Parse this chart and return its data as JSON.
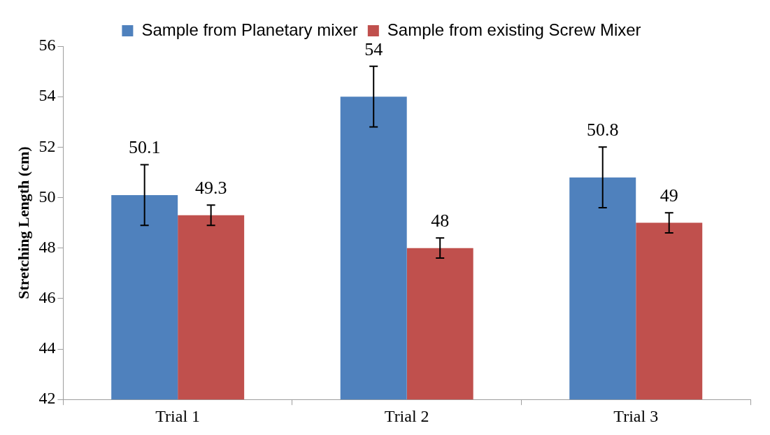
{
  "chart_data": {
    "type": "bar",
    "ylabel": "Stretching Length (cm)",
    "categories": [
      "Trial 1",
      "Trial 2",
      "Trial 3"
    ],
    "series": [
      {
        "name": "Sample from Planetary mixer",
        "color": "#4f81bd",
        "values": [
          50.1,
          54,
          50.8
        ],
        "errors": [
          1.2,
          1.2,
          1.2
        ]
      },
      {
        "name": "Sample from existing Screw Mixer",
        "color": "#c0504d",
        "values": [
          49.3,
          48,
          49
        ],
        "errors": [
          0.4,
          0.4,
          0.4
        ]
      }
    ],
    "ylim": [
      42,
      56
    ],
    "yticks": [
      42,
      44,
      46,
      48,
      50,
      52,
      54,
      56
    ],
    "grid": false,
    "legend": "top",
    "data_labels": true
  }
}
